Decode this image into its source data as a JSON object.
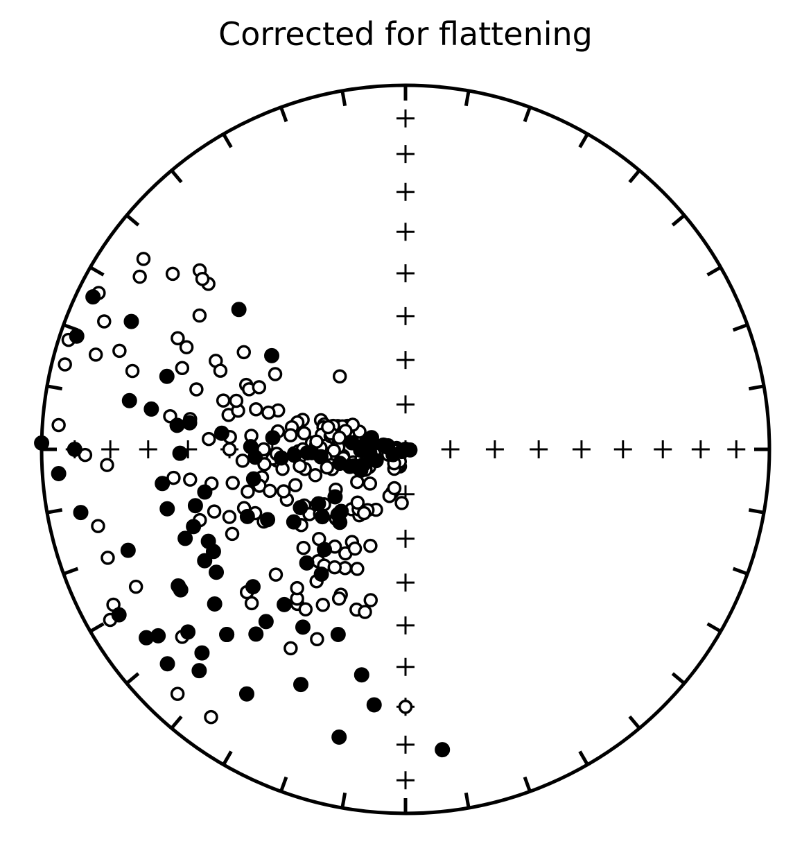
{
  "title": "Corrected for flattening",
  "chart_data": {
    "type": "scatter",
    "projection": "equal-area stereonet (lower hemisphere)",
    "title": "Corrected for flattening",
    "point_units": "[declination_deg, inclination_deg]",
    "legend": "none",
    "style": {
      "down_points": "filled black circles (positive inclination)",
      "up_points": "open circles (negative inclination)",
      "color": "#000000"
    },
    "down_points": [
      [
        310,
        40
      ],
      [
        295,
        18
      ],
      [
        296,
        5
      ],
      [
        289,
        5
      ],
      [
        266,
        5
      ],
      [
        270,
        10
      ],
      [
        271,
        0
      ],
      [
        259,
        10
      ],
      [
        250,
        20
      ],
      [
        240,
        10
      ],
      [
        234,
        13
      ],
      [
        245,
        40
      ],
      [
        204,
        30
      ],
      [
        173,
        18
      ],
      [
        256,
        33
      ],
      [
        305,
        53
      ],
      [
        287,
        32
      ],
      [
        280,
        24
      ],
      [
        279,
        30
      ],
      [
        276,
        37
      ],
      [
        277,
        40
      ],
      [
        262,
        33
      ],
      [
        255,
        40
      ],
      [
        259,
        55
      ],
      [
        271,
        55
      ],
      [
        267,
        65
      ],
      [
        269,
        38
      ],
      [
        275,
        48
      ],
      [
        275,
        60
      ],
      [
        266,
        62
      ],
      [
        267,
        56
      ],
      [
        258,
        43
      ],
      [
        241,
        37
      ],
      [
        233,
        16
      ],
      [
        228,
        13
      ],
      [
        250,
        38
      ],
      [
        248,
        35
      ],
      [
        242,
        40
      ],
      [
        237,
        38
      ],
      [
        239,
        28
      ],
      [
        224,
        30
      ],
      [
        238,
        28
      ],
      [
        231,
        33
      ],
      [
        219,
        35
      ],
      [
        224,
        30
      ],
      [
        225,
        22
      ],
      [
        223,
        18
      ],
      [
        230,
        23
      ],
      [
        213,
        21
      ],
      [
        228,
        43
      ],
      [
        219,
        39
      ],
      [
        210,
        43
      ],
      [
        200,
        45
      ],
      [
        191,
        37
      ],
      [
        187,
        30
      ],
      [
        193,
        20
      ],
      [
        218,
        45
      ],
      [
        268,
        68
      ],
      [
        269,
        80
      ],
      [
        265,
        71
      ],
      [
        243,
        55
      ],
      [
        214,
        56
      ],
      [
        221,
        56
      ],
      [
        219,
        61
      ],
      [
        241,
        63
      ],
      [
        237,
        60
      ],
      [
        222,
        68
      ],
      [
        226,
        70
      ],
      [
        238,
        67
      ],
      [
        231,
        66
      ],
      [
        226,
        69
      ],
      [
        247,
        51
      ],
      [
        252,
        78
      ],
      [
        245,
        79
      ],
      [
        247,
        87
      ],
      [
        236,
        71
      ],
      [
        241,
        89
      ],
      [
        278,
        91
      ],
      [
        281,
        90
      ],
      [
        277,
        78
      ],
      [
        281,
        85
      ],
      [
        269,
        90
      ],
      [
        272,
        82
      ],
      [
        277,
        86
      ],
      [
        253,
        77
      ],
      [
        249,
        83
      ],
      [
        250,
        80
      ],
      [
        258,
        75
      ],
      [
        264,
        82
      ],
      [
        268,
        69
      ],
      [
        289,
        82
      ],
      [
        278,
        81
      ]
    ],
    "up_points": [
      [
        311,
        26
      ],
      [
        287,
        60
      ],
      [
        318,
        68
      ],
      [
        282,
        79
      ],
      [
        184,
        78
      ],
      [
        279,
        88
      ],
      [
        273,
        81
      ],
      [
        264,
        76
      ],
      [
        277,
        84
      ],
      [
        285,
        80
      ],
      [
        289,
        74
      ],
      [
        292,
        76
      ],
      [
        280,
        80
      ],
      [
        276,
        83
      ],
      [
        278,
        86
      ],
      [
        274,
        86
      ],
      [
        268,
        88
      ],
      [
        262,
        88
      ],
      [
        283,
        86
      ],
      [
        282,
        82
      ],
      [
        286,
        79
      ],
      [
        274,
        83
      ],
      [
        289,
        70
      ],
      [
        290,
        75
      ],
      [
        288,
        73
      ],
      [
        287,
        71
      ],
      [
        285,
        71
      ],
      [
        286,
        66
      ],
      [
        284,
        65
      ],
      [
        281,
        64
      ],
      [
        280,
        71
      ],
      [
        279,
        67
      ],
      [
        280,
        73
      ],
      [
        279,
        74
      ],
      [
        276,
        75
      ],
      [
        272,
        75
      ],
      [
        269,
        74
      ],
      [
        268,
        70
      ],
      [
        274,
        69
      ],
      [
        273,
        70
      ],
      [
        268,
        65
      ],
      [
        269,
        66
      ],
      [
        265,
        66
      ],
      [
        264,
        72
      ],
      [
        262,
        76
      ],
      [
        258,
        73
      ],
      [
        256,
        78
      ],
      [
        254,
        80
      ],
      [
        258,
        80
      ],
      [
        262,
        83
      ],
      [
        253,
        86
      ],
      [
        248,
        87
      ],
      [
        244,
        81
      ],
      [
        255,
        73
      ],
      [
        257,
        72
      ],
      [
        259,
        67
      ],
      [
        261,
        66
      ],
      [
        265,
        61
      ],
      [
        266,
        60
      ],
      [
        261,
        62
      ],
      [
        264,
        58
      ],
      [
        259,
        57
      ],
      [
        256,
        56
      ],
      [
        253,
        58
      ],
      [
        247,
        61
      ],
      [
        251,
        61
      ],
      [
        252,
        64
      ],
      [
        238,
        65
      ],
      [
        241,
        64
      ],
      [
        243,
        54
      ],
      [
        250,
        51
      ],
      [
        247,
        53
      ],
      [
        234,
        61
      ],
      [
        236,
        64
      ],
      [
        233,
        66
      ],
      [
        226,
        79
      ],
      [
        236,
        77
      ],
      [
        243,
        80
      ],
      [
        254,
        69
      ],
      [
        236,
        68
      ],
      [
        240,
        72
      ],
      [
        225,
        68
      ],
      [
        222,
        72
      ],
      [
        215,
        72
      ],
      [
        218,
        73
      ],
      [
        216,
        63
      ],
      [
        218,
        58
      ],
      [
        215,
        58
      ],
      [
        224,
        62
      ],
      [
        210,
        66
      ],
      [
        206,
        75
      ],
      [
        197,
        80
      ],
      [
        199,
        79
      ],
      [
        198,
        86
      ],
      [
        196,
        81
      ],
      [
        205,
        86
      ],
      [
        210,
        85
      ],
      [
        205,
        87
      ],
      [
        219,
        86
      ],
      [
        222,
        74
      ],
      [
        212,
        74
      ],
      [
        226,
        58
      ],
      [
        226,
        49
      ],
      [
        225,
        40
      ],
      [
        204,
        54
      ],
      [
        200,
        67
      ],
      [
        210,
        63
      ],
      [
        207,
        65
      ],
      [
        202,
        61
      ],
      [
        207,
        60
      ],
      [
        211,
        59
      ],
      [
        214,
        54
      ],
      [
        215,
        47
      ],
      [
        216,
        48
      ],
      [
        212,
        47
      ],
      [
        208,
        50
      ],
      [
        204,
        53
      ],
      [
        218,
        50
      ],
      [
        210,
        37
      ],
      [
        197,
        52
      ],
      [
        194,
        52
      ],
      [
        205,
        42
      ],
      [
        193,
        55
      ],
      [
        213,
        73
      ],
      [
        274,
        50
      ],
      [
        286,
        40
      ],
      [
        273,
        45
      ],
      [
        295,
        42
      ],
      [
        281,
        49
      ],
      [
        283,
        51
      ],
      [
        292,
        51
      ],
      [
        278,
        40
      ],
      [
        285,
        55
      ],
      [
        275,
        55
      ],
      [
        270,
        58
      ],
      [
        266,
        53
      ],
      [
        270,
        50
      ],
      [
        259,
        50
      ],
      [
        255,
        53
      ],
      [
        260,
        45
      ],
      [
        249,
        47
      ],
      [
        244,
        46
      ],
      [
        251,
        40
      ],
      [
        252,
        44
      ],
      [
        262,
        40
      ],
      [
        263,
        36
      ],
      [
        278,
        35
      ],
      [
        285,
        58
      ],
      [
        286,
        50
      ],
      [
        291,
        52
      ],
      [
        293,
        54
      ],
      [
        285,
        47
      ],
      [
        278,
        61
      ],
      [
        277,
        64
      ],
      [
        270,
        67
      ],
      [
        271,
        71
      ],
      [
        275,
        70
      ],
      [
        282,
        73
      ],
      [
        288,
        77
      ],
      [
        291,
        79
      ],
      [
        295,
        77
      ],
      [
        287,
        76
      ],
      [
        280,
        75
      ],
      [
        286,
        72
      ],
      [
        268,
        61
      ],
      [
        300,
        56
      ],
      [
        301,
        47
      ],
      [
        293,
        44
      ],
      [
        290,
        35
      ],
      [
        295,
        34
      ],
      [
        296,
        31
      ],
      [
        303,
        33
      ],
      [
        310,
        30
      ],
      [
        310,
        28
      ],
      [
        307,
        21
      ],
      [
        303,
        14
      ],
      [
        306,
        12
      ],
      [
        297,
        6
      ],
      [
        293,
        11
      ],
      [
        289,
        18
      ],
      [
        286,
        23
      ],
      [
        287,
        12
      ],
      [
        288,
        3
      ],
      [
        284,
        4
      ],
      [
        274,
        5
      ],
      [
        269,
        13
      ],
      [
        267,
        19
      ],
      [
        256,
        14
      ],
      [
        250,
        14
      ],
      [
        240,
        7
      ],
      [
        242,
        10
      ],
      [
        243,
        18
      ],
      [
        225,
        22
      ],
      [
        223,
        9
      ],
      [
        216,
        10
      ],
      [
        228,
        41
      ],
      [
        230,
        21
      ],
      [
        180,
        30
      ]
    ]
  }
}
